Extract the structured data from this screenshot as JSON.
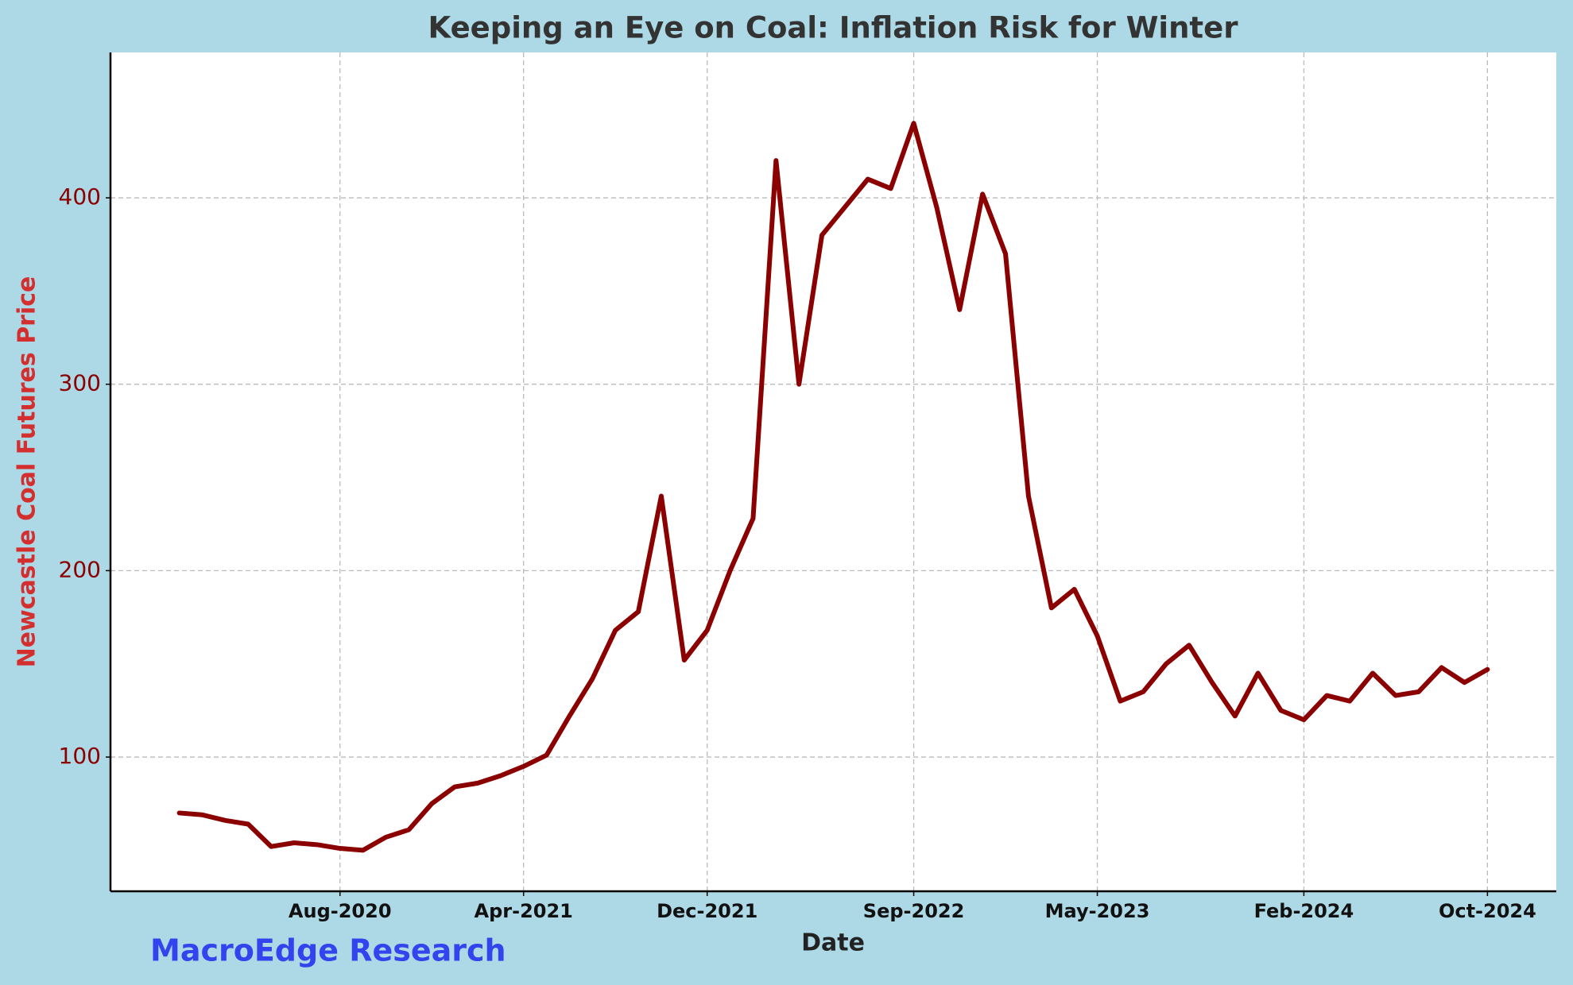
{
  "chart_data": {
    "type": "line",
    "title": "Keeping an Eye on Coal: Inflation Risk for Winter",
    "x_label": "Date",
    "y_label": "Newcastle Coal Futures Price",
    "annotation": "MacroEdge Research",
    "color": "#8b0000",
    "grid": true,
    "x": [
      "2020-01",
      "2020-02",
      "2020-03",
      "2020-04",
      "2020-05",
      "2020-06",
      "2020-07",
      "2020-08",
      "2020-09",
      "2020-10",
      "2020-11",
      "2020-12",
      "2021-01",
      "2021-02",
      "2021-03",
      "2021-04",
      "2021-05",
      "2021-06",
      "2021-07",
      "2021-08",
      "2021-09",
      "2021-10",
      "2021-11",
      "2021-12",
      "2022-01",
      "2022-02",
      "2022-03",
      "2022-04",
      "2022-05",
      "2022-06",
      "2022-07",
      "2022-08",
      "2022-09",
      "2022-10",
      "2022-11",
      "2022-12",
      "2023-01",
      "2023-02",
      "2023-03",
      "2023-04",
      "2023-05",
      "2023-06",
      "2023-07",
      "2023-08",
      "2023-09",
      "2023-10",
      "2023-11",
      "2023-12",
      "2024-01",
      "2024-02",
      "2024-03",
      "2024-04",
      "2024-05",
      "2024-06",
      "2024-07",
      "2024-08",
      "2024-09",
      "2024-10"
    ],
    "values": [
      70,
      69,
      66,
      64,
      52,
      54,
      53,
      51,
      50,
      57,
      61,
      75,
      84,
      86,
      90,
      95,
      101,
      122,
      142,
      168,
      178,
      240,
      152,
      168,
      200,
      228,
      420,
      300,
      380,
      395,
      410,
      405,
      440,
      395,
      340,
      402,
      370,
      240,
      180,
      190,
      165,
      130,
      135,
      150,
      160,
      140,
      122,
      145,
      125,
      120,
      133,
      130,
      145,
      133,
      135,
      148,
      140,
      147
    ],
    "xlim": [
      "2019-10",
      "2025-01"
    ],
    "xticks": [
      {
        "value": "2020-08",
        "label": "Aug-2020"
      },
      {
        "value": "2021-04",
        "label": "Apr-2021"
      },
      {
        "value": "2021-12",
        "label": "Dec-2021"
      },
      {
        "value": "2022-09",
        "label": "Sep-2022"
      },
      {
        "value": "2023-05",
        "label": "May-2023"
      },
      {
        "value": "2024-02",
        "label": "Feb-2024"
      },
      {
        "value": "2024-10",
        "label": "Oct-2024"
      }
    ],
    "ylim": [
      28,
      478
    ],
    "yticks": [
      100,
      200,
      300,
      400
    ]
  }
}
